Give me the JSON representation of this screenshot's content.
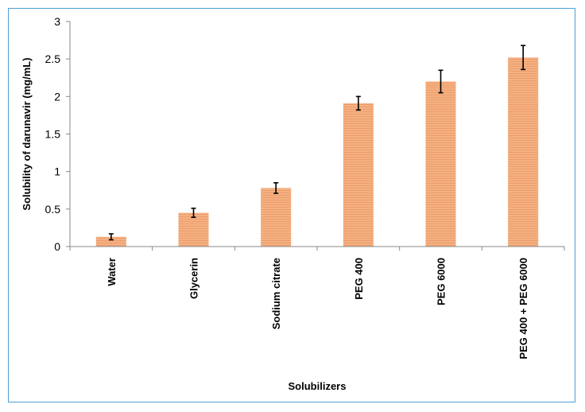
{
  "chart_data": {
    "type": "bar",
    "xlabel": "Solubilizers",
    "ylabel": "Solubility  of darunavir (mg/mL)",
    "ylim": [
      0,
      3
    ],
    "yticks": [
      "0",
      "0.5",
      "1",
      "1.5",
      "2",
      "2.5",
      "3"
    ],
    "grid": false,
    "categories": [
      "Water",
      "Glycerin",
      "Sodium citrate",
      "PEG 400",
      "PEG 6000",
      "PEG 400 + PEG 6000"
    ],
    "values": [
      0.13,
      0.45,
      0.78,
      1.91,
      2.2,
      2.52
    ],
    "errors": [
      0.04,
      0.06,
      0.07,
      0.09,
      0.15,
      0.16
    ],
    "colors": {
      "bar": "#f4b183",
      "bar_stripe": "#ed9d6a",
      "border": "#4f9fd6"
    }
  }
}
